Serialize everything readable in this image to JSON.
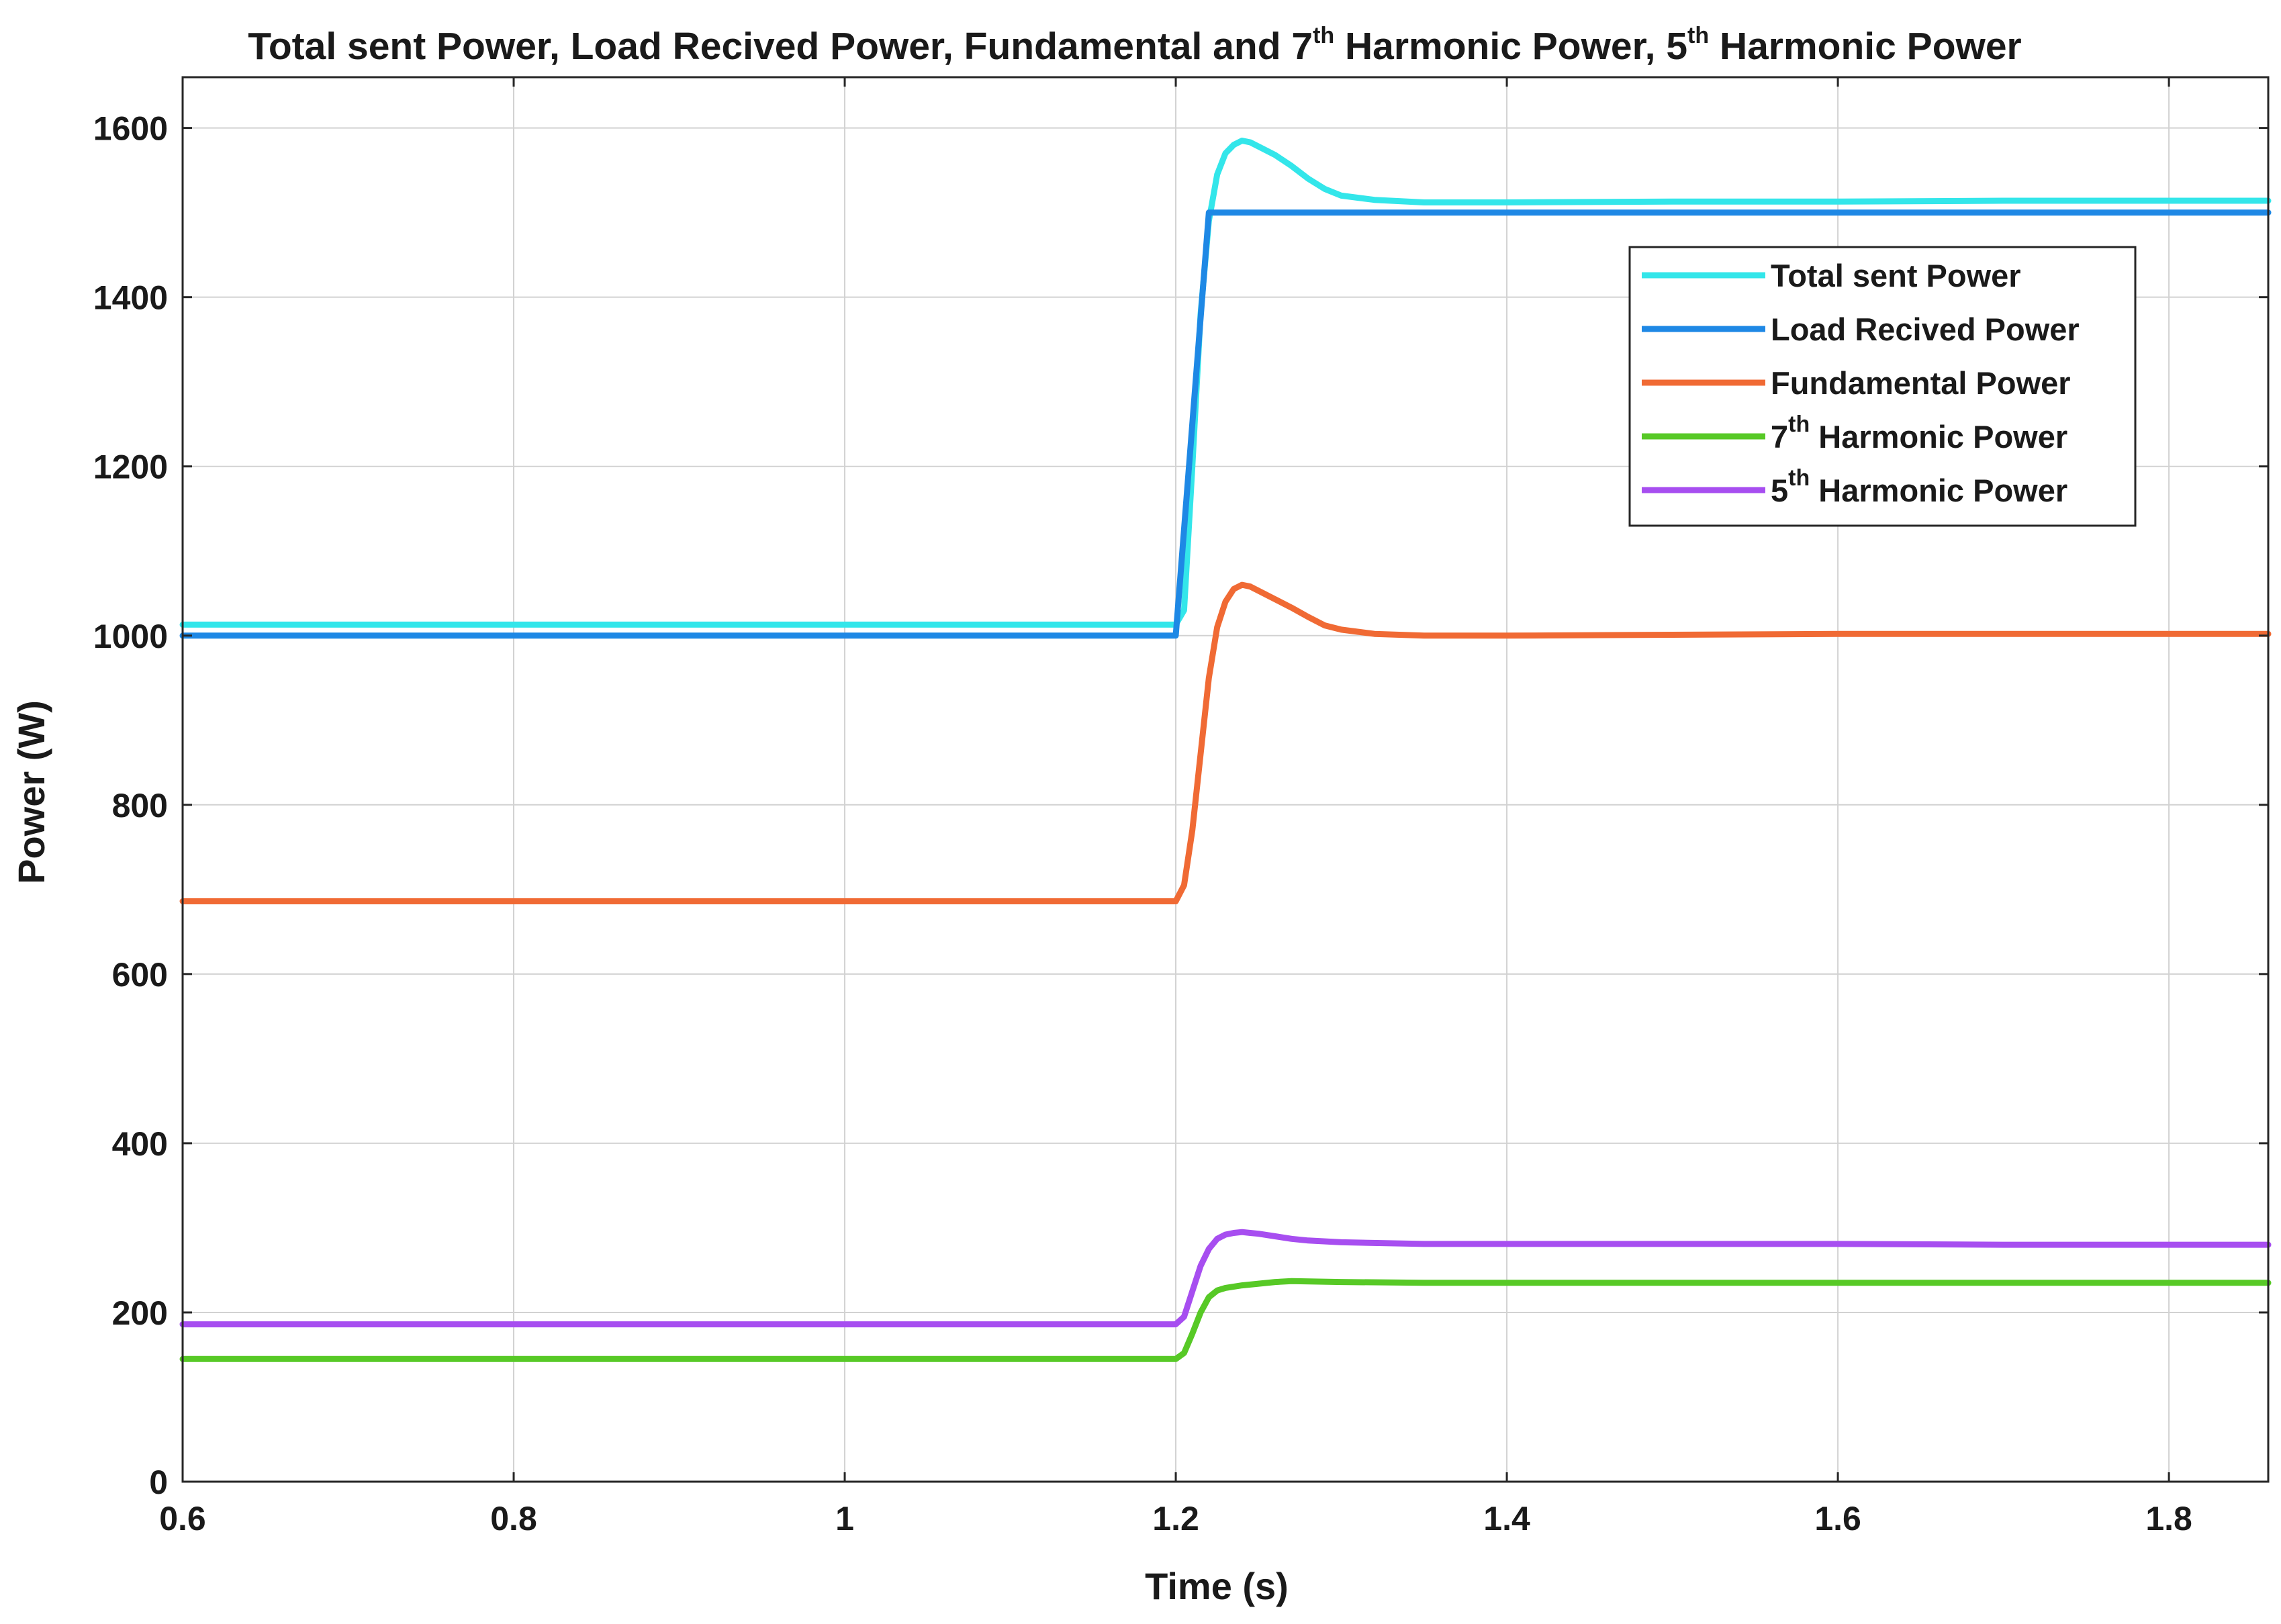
{
  "chart_data": {
    "type": "line",
    "title": {
      "parts": [
        {
          "text": "Total sent Power, Load Recived Power, Fundamental and 7"
        },
        {
          "text": "th",
          "sup": true
        },
        {
          "text": " Harmonic Power, 5"
        },
        {
          "text": "th",
          "sup": true
        },
        {
          "text": " Harmonic Power"
        }
      ]
    },
    "xlabel": "Time (s)",
    "ylabel": "Power (W)",
    "xlim": [
      0.6,
      1.86
    ],
    "ylim": [
      0,
      1660
    ],
    "xticks": [
      0.6,
      0.8,
      1,
      1.2,
      1.4,
      1.6,
      1.8
    ],
    "xtick_labels": [
      "0.6",
      "0.8",
      "1",
      "1.2",
      "1.4",
      "1.6",
      "1.8"
    ],
    "yticks": [
      0,
      200,
      400,
      600,
      800,
      1000,
      1200,
      1400,
      1600
    ],
    "ytick_labels": [
      "0",
      "200",
      "400",
      "600",
      "800",
      "1000",
      "1200",
      "1400",
      "1600"
    ],
    "grid": true,
    "legend_position": "top-right",
    "series": [
      {
        "name": "Total sent Power",
        "label_parts": [
          {
            "text": "Total sent Power"
          }
        ],
        "color": "#33e6ea",
        "x": [
          0.6,
          1.2,
          1.205,
          1.21,
          1.215,
          1.22,
          1.225,
          1.23,
          1.235,
          1.24,
          1.245,
          1.25,
          1.26,
          1.27,
          1.28,
          1.29,
          1.3,
          1.32,
          1.35,
          1.4,
          1.5,
          1.6,
          1.7,
          1.86
        ],
        "y": [
          1013,
          1013,
          1030,
          1200,
          1380,
          1490,
          1545,
          1570,
          1580,
          1585,
          1583,
          1578,
          1568,
          1555,
          1540,
          1528,
          1520,
          1515,
          1512,
          1512,
          1513,
          1513,
          1514,
          1514
        ]
      },
      {
        "name": "Load Recived Power",
        "label_parts": [
          {
            "text": "Load Recived Power"
          }
        ],
        "color": "#1e88e5",
        "x": [
          0.6,
          1.2,
          1.22,
          1.86
        ],
        "y": [
          1000,
          1000,
          1500,
          1500
        ]
      },
      {
        "name": "Fundamental  Power",
        "label_parts": [
          {
            "text": "Fundamental  Power"
          }
        ],
        "color": "#f06a34",
        "x": [
          0.6,
          1.2,
          1.205,
          1.21,
          1.215,
          1.22,
          1.225,
          1.23,
          1.235,
          1.24,
          1.245,
          1.25,
          1.26,
          1.27,
          1.28,
          1.29,
          1.3,
          1.32,
          1.35,
          1.4,
          1.5,
          1.6,
          1.7,
          1.86
        ],
        "y": [
          686,
          686,
          705,
          770,
          860,
          950,
          1010,
          1040,
          1055,
          1060,
          1058,
          1053,
          1043,
          1033,
          1022,
          1012,
          1007,
          1002,
          1000,
          1000,
          1001,
          1002,
          1002,
          1002
        ]
      },
      {
        "name": "7th  Harmonic Power",
        "label_parts": [
          {
            "text": "7"
          },
          {
            "text": "th",
            "sup": true
          },
          {
            "text": "  Harmonic Power"
          }
        ],
        "color": "#57c926",
        "x": [
          0.6,
          1.2,
          1.205,
          1.21,
          1.215,
          1.22,
          1.225,
          1.23,
          1.24,
          1.25,
          1.26,
          1.27,
          1.3,
          1.35,
          1.4,
          1.5,
          1.6,
          1.7,
          1.86
        ],
        "y": [
          145,
          145,
          152,
          175,
          200,
          218,
          226,
          229,
          232,
          234,
          236,
          237,
          236,
          235,
          235,
          235,
          235,
          235,
          235
        ]
      },
      {
        "name": "5th Harmonic Power",
        "label_parts": [
          {
            "text": "5"
          },
          {
            "text": "th",
            "sup": true
          },
          {
            "text": " Harmonic Power"
          }
        ],
        "color": "#a74ef0",
        "x": [
          0.6,
          1.2,
          1.205,
          1.21,
          1.215,
          1.22,
          1.225,
          1.23,
          1.235,
          1.24,
          1.245,
          1.25,
          1.26,
          1.27,
          1.28,
          1.3,
          1.35,
          1.4,
          1.5,
          1.6,
          1.7,
          1.86
        ],
        "y": [
          186,
          186,
          195,
          225,
          255,
          275,
          287,
          292,
          294,
          295,
          294,
          293,
          290,
          287,
          285,
          283,
          281,
          281,
          281,
          281,
          280,
          280
        ]
      }
    ]
  }
}
